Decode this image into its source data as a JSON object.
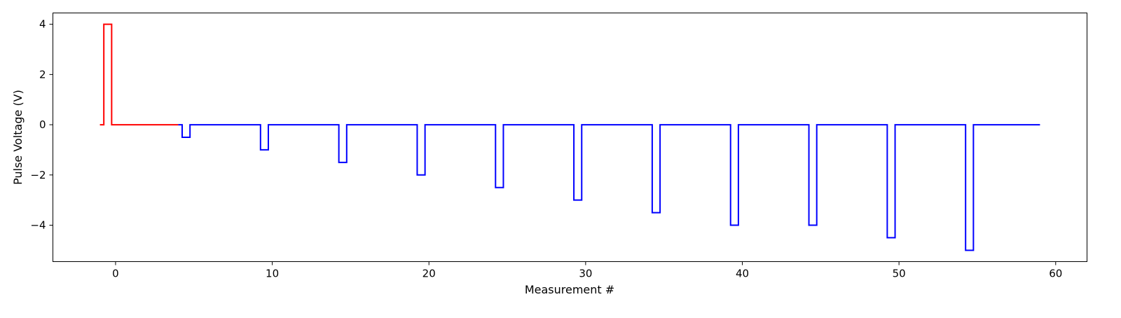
{
  "chart_data": {
    "type": "line",
    "title": "",
    "xlabel": "Measurement #",
    "ylabel": "Pulse Voltage (V)",
    "xlim": [
      -4,
      62
    ],
    "ylim": [
      -5.45,
      4.45
    ],
    "xticks": [
      0,
      10,
      20,
      30,
      40,
      50,
      60
    ],
    "yticks": [
      -4,
      -2,
      0,
      2,
      4
    ],
    "grid": false,
    "legend": "none",
    "series": [
      {
        "color": "#ff0000",
        "drawstyle": "steps-post",
        "x": [
          -1,
          -0.75,
          -0.25,
          4
        ],
        "y": [
          0,
          4,
          0,
          0
        ]
      },
      {
        "color": "#0000ff",
        "drawstyle": "steps-post",
        "x": [
          4,
          4.25,
          4.75,
          9.25,
          9.75,
          14.25,
          14.75,
          19.25,
          19.75,
          24.25,
          24.75,
          29.25,
          29.75,
          34.25,
          34.75,
          39.25,
          39.75,
          44.25,
          44.75,
          49.25,
          49.75,
          54.25,
          54.75,
          59
        ],
        "y": [
          0,
          -0.5,
          0,
          -1,
          0,
          -1.5,
          0,
          -2,
          0,
          -2.5,
          0,
          -3,
          0,
          -3.5,
          0,
          -4,
          0,
          -4,
          0,
          -4.5,
          0,
          -5,
          0,
          0
        ]
      }
    ]
  }
}
